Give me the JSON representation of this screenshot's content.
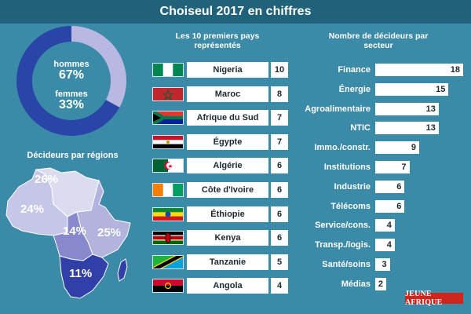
{
  "title": "Choiseul 2017 en chiffres",
  "chart_data": [
    {
      "type": "pie",
      "slices": [
        {
          "label": "hommes",
          "value": 67,
          "display": "67%",
          "color": "#2a45a8"
        },
        {
          "label": "femmes",
          "value": 33,
          "display": "33%",
          "color": "#b9b8e2"
        }
      ]
    },
    {
      "type": "map",
      "title": "Décideurs par régions",
      "regions": [
        {
          "region": "north",
          "value": 26,
          "display": "26%",
          "color": "#dcdcf0"
        },
        {
          "region": "west",
          "value": 24,
          "display": "24%",
          "color": "#c6c6e8"
        },
        {
          "region": "central",
          "value": 14,
          "display": "14%",
          "color": "#8888cc"
        },
        {
          "region": "east",
          "value": 25,
          "display": "25%",
          "color": "#b3b3de"
        },
        {
          "region": "south",
          "value": 11,
          "display": "11%",
          "color": "#3040a8"
        }
      ]
    },
    {
      "type": "table",
      "title": "Les 10 premiers pays représentés",
      "rows": [
        {
          "country": "Nigeria",
          "value": 10,
          "flag": "nigeria"
        },
        {
          "country": "Maroc",
          "value": 8,
          "flag": "morocco"
        },
        {
          "country": "Afrique du Sud",
          "value": 7,
          "flag": "south-africa"
        },
        {
          "country": "Égypte",
          "value": 7,
          "flag": "egypt"
        },
        {
          "country": "Algérie",
          "value": 6,
          "flag": "algeria"
        },
        {
          "country": "Côte d'Ivoire",
          "value": 6,
          "flag": "cote-divoire"
        },
        {
          "country": "Éthiopie",
          "value": 6,
          "flag": "ethiopia"
        },
        {
          "country": "Kenya",
          "value": 6,
          "flag": "kenya"
        },
        {
          "country": "Tanzanie",
          "value": 5,
          "flag": "tanzania"
        },
        {
          "country": "Angola",
          "value": 4,
          "flag": "angola"
        }
      ]
    },
    {
      "type": "bar",
      "title": "Nombre de décideurs par secteur",
      "categories": [
        "Finance",
        "Énergie",
        "Agroalimentaire",
        "NTIC",
        "Immo./constr.",
        "Institutions",
        "Industrie",
        "Télécoms",
        "Service/cons.",
        "Transp./logis.",
        "Santé/soins",
        "Médias"
      ],
      "values": [
        18,
        15,
        13,
        13,
        9,
        7,
        6,
        6,
        4,
        4,
        3,
        2
      ]
    }
  ],
  "logo_text": "JEUNE AFRIQUE",
  "colors": {
    "background": "#3a8aa8",
    "title_bar": "#21627b",
    "logo": "#d0251c"
  }
}
